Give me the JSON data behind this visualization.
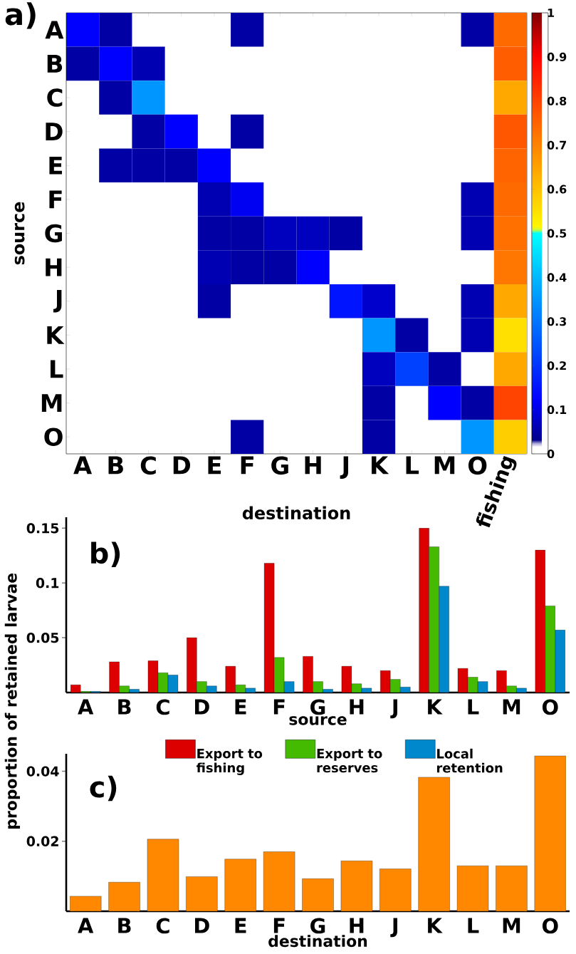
{
  "chart_data": [
    {
      "type": "heatmap",
      "title": "a)",
      "xlabel": "destination",
      "ylabel": "source",
      "categories": [
        "A",
        "B",
        "C",
        "D",
        "E",
        "F",
        "G",
        "H",
        "J",
        "K",
        "L",
        "M",
        "O",
        "fishing"
      ],
      "y_categories": [
        "A",
        "B",
        "C",
        "D",
        "E",
        "F",
        "G",
        "H",
        "J",
        "K",
        "L",
        "M",
        "O"
      ],
      "cells": [
        [
          0.12,
          0.05,
          null,
          null,
          null,
          0.05,
          null,
          null,
          null,
          null,
          null,
          null,
          0.05,
          0.74
        ],
        [
          0.05,
          0.12,
          0.06,
          null,
          null,
          null,
          null,
          null,
          null,
          null,
          null,
          null,
          null,
          0.76
        ],
        [
          null,
          0.05,
          0.35,
          null,
          null,
          null,
          null,
          null,
          null,
          null,
          null,
          null,
          null,
          0.64
        ],
        [
          null,
          null,
          0.05,
          0.12,
          null,
          0.05,
          null,
          null,
          null,
          null,
          null,
          null,
          null,
          0.77
        ],
        [
          null,
          0.05,
          0.05,
          0.05,
          0.12,
          null,
          null,
          null,
          null,
          null,
          null,
          null,
          null,
          0.75
        ],
        [
          null,
          null,
          null,
          null,
          0.06,
          0.11,
          null,
          null,
          null,
          null,
          null,
          null,
          0.06,
          0.74
        ],
        [
          null,
          null,
          null,
          null,
          0.05,
          0.05,
          0.07,
          0.07,
          0.05,
          null,
          null,
          null,
          0.06,
          0.73
        ],
        [
          null,
          null,
          null,
          null,
          0.06,
          0.05,
          0.05,
          0.12,
          null,
          null,
          null,
          null,
          null,
          0.72
        ],
        [
          null,
          null,
          null,
          null,
          0.05,
          null,
          null,
          null,
          0.15,
          0.08,
          null,
          null,
          0.06,
          0.64
        ],
        [
          null,
          null,
          null,
          null,
          null,
          null,
          null,
          null,
          null,
          0.35,
          0.05,
          null,
          0.06,
          0.55
        ],
        [
          null,
          null,
          null,
          null,
          null,
          null,
          null,
          null,
          null,
          0.07,
          0.22,
          0.05,
          null,
          0.64
        ],
        [
          null,
          null,
          null,
          null,
          null,
          null,
          null,
          null,
          null,
          0.05,
          null,
          0.12,
          0.05,
          0.8
        ],
        [
          null,
          null,
          null,
          null,
          null,
          0.05,
          null,
          null,
          null,
          0.05,
          null,
          null,
          0.35,
          0.58
        ]
      ],
      "clim": [
        0,
        1
      ],
      "cticks": [
        0,
        0.1,
        0.2,
        0.3,
        0.4,
        0.5,
        0.6,
        0.7,
        0.8,
        0.9,
        1
      ]
    },
    {
      "type": "bar",
      "title": "b)",
      "xlabel": "source",
      "ylabel": "proportion of retained larvae",
      "categories": [
        "A",
        "B",
        "C",
        "D",
        "E",
        "F",
        "G",
        "H",
        "J",
        "K",
        "L",
        "M",
        "O"
      ],
      "series": [
        {
          "name": "Export to fishing",
          "color": "#dd0000",
          "values": [
            0.007,
            0.028,
            0.029,
            0.05,
            0.024,
            0.118,
            0.033,
            0.024,
            0.02,
            0.15,
            0.022,
            0.02,
            0.13
          ]
        },
        {
          "name": "Export to reserves",
          "color": "#44bb00",
          "values": [
            0.001,
            0.006,
            0.018,
            0.01,
            0.007,
            0.032,
            0.01,
            0.008,
            0.012,
            0.133,
            0.014,
            0.006,
            0.079
          ]
        },
        {
          "name": "Local retention",
          "color": "#0088cc",
          "values": [
            0.001,
            0.003,
            0.016,
            0.006,
            0.004,
            0.01,
            0.003,
            0.004,
            0.005,
            0.097,
            0.01,
            0.004,
            0.057
          ]
        }
      ],
      "ylim": [
        0,
        0.16
      ],
      "yticks": [
        0.05,
        0.1,
        0.15
      ],
      "legend": "bottom"
    },
    {
      "type": "bar",
      "title": "c)",
      "xlabel": "destination",
      "categories": [
        "A",
        "B",
        "C",
        "D",
        "E",
        "F",
        "G",
        "H",
        "J",
        "K",
        "L",
        "M",
        "O"
      ],
      "values": [
        0.0043,
        0.0083,
        0.0206,
        0.0099,
        0.0149,
        0.017,
        0.0093,
        0.0144,
        0.0121,
        0.0383,
        0.013,
        0.013,
        0.0444
      ],
      "color": "#ff8800",
      "ylim": [
        0,
        0.045
      ],
      "yticks": [
        0.02,
        0.04
      ]
    }
  ]
}
